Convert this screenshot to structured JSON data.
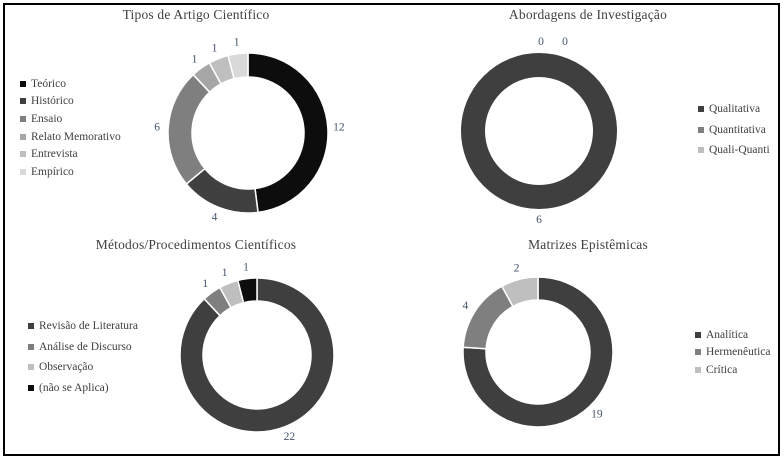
{
  "page": {
    "background": "#ffffff",
    "border_color": "#000000",
    "title_color": "#404040",
    "legend_text_color": "#404040"
  },
  "chart_data": [
    {
      "type": "pie",
      "subtype": "donut",
      "title": "Tipos de Artigo Científico",
      "categories": [
        "Teórico",
        "Histórico",
        "Ensaio",
        "Relato Memorativo",
        "Entrevista",
        "Empírico"
      ],
      "values": [
        12,
        4,
        6,
        1,
        1,
        1
      ],
      "colors": [
        "#0d0d0d",
        "#404040",
        "#7f7f7f",
        "#a6a6a6",
        "#bfbfbf",
        "#d9d9d9"
      ],
      "total": 25,
      "start_angle_deg": 0,
      "direction": "clockwise",
      "legend_position": "left",
      "labels_shown": [
        12,
        4,
        6,
        1,
        1,
        1
      ],
      "label_color": "#44546a"
    },
    {
      "type": "pie",
      "subtype": "donut",
      "title": "Abordagens de Investigação",
      "categories": [
        "Qualitativa",
        "Quantitativa",
        "Quali-Quanti"
      ],
      "values": [
        6,
        0,
        0
      ],
      "colors": [
        "#3f3f3f",
        "#7f7f7f",
        "#bfbfbf"
      ],
      "total": 6,
      "start_angle_deg": 0,
      "direction": "clockwise",
      "legend_position": "right",
      "labels_shown": [
        6,
        0,
        0
      ],
      "label_dx": [
        0,
        2,
        26
      ],
      "label_color": "#44546a"
    },
    {
      "type": "pie",
      "subtype": "donut",
      "title": "Métodos/Procedimentos Científicos",
      "categories": [
        "Revisão de Literatura",
        "Análise de Discurso",
        "Observação",
        "(não se Aplica)"
      ],
      "values": [
        22,
        1,
        1,
        1
      ],
      "colors": [
        "#3f3f3f",
        "#7f7f7f",
        "#bfbfbf",
        "#0d0d0d"
      ],
      "total": 25,
      "start_angle_deg": 0,
      "direction": "clockwise",
      "legend_position": "left",
      "labels_shown": [
        22,
        1,
        1,
        1
      ],
      "label_color": "#44546a"
    },
    {
      "type": "pie",
      "subtype": "donut",
      "title": "Matrizes Epistêmicas",
      "categories": [
        "Analítica",
        "Hermenêutica",
        "Crítica"
      ],
      "values": [
        19,
        4,
        2
      ],
      "colors": [
        "#3f3f3f",
        "#7f7f7f",
        "#bfbfbf"
      ],
      "total": 25,
      "start_angle_deg": 0,
      "direction": "clockwise",
      "legend_position": "right",
      "labels_shown": [
        19,
        4,
        2
      ],
      "label_color": "#44546a"
    }
  ]
}
